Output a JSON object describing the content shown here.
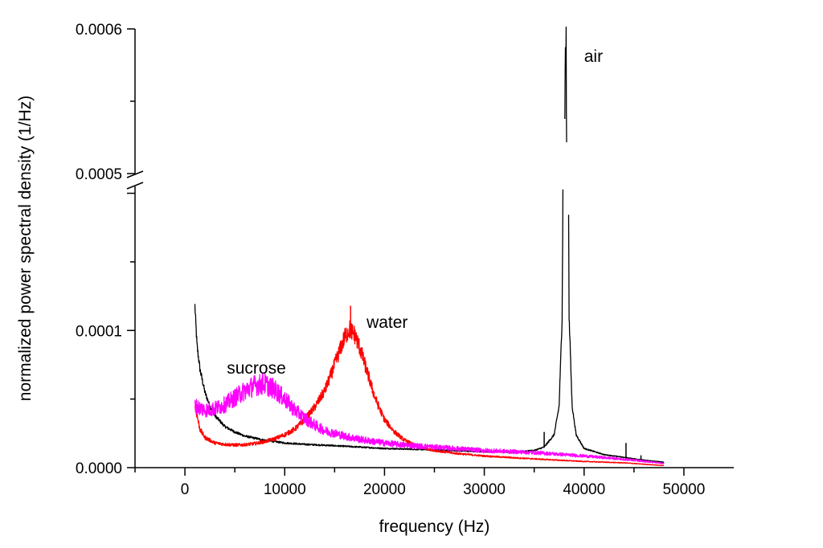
{
  "chart_data": {
    "type": "line",
    "title": "",
    "xlabel": "frequency (Hz)",
    "ylabel": "normalized power spectral density (1/Hz)",
    "xlim": [
      -5000,
      55000
    ],
    "ylim_lower": [
      0.0,
      0.000205
    ],
    "ylim_upper": [
      0.0005,
      0.0006
    ],
    "axis_break": "between 0.000205 and 0.0005 on the y axis",
    "x_ticks": [
      0,
      10000,
      20000,
      30000,
      40000,
      50000
    ],
    "x_tick_labels": [
      "0",
      "10000",
      "20000",
      "30000",
      "40000",
      "50000"
    ],
    "y_tick_labels": [
      "0.0000",
      "0.0001",
      "0.0005",
      "0.0006"
    ],
    "grid": false,
    "legend": "none (series labelled by annotations)",
    "annotations": [
      {
        "text": "air",
        "x": 40000,
        "y": 0.000581
      },
      {
        "text": "water",
        "x": 18200,
        "y": 0.000106
      },
      {
        "text": "sucrose",
        "x": 4200,
        "y": 7.27e-05
      }
    ],
    "series": [
      {
        "name": "air",
        "color": "#000000",
        "description": "high 1/f rise at low frequency, flat background, sharp resonance near 38200 Hz",
        "x": [
          1000,
          1200,
          1500,
          2000,
          2500,
          3000,
          4000,
          5000,
          6000,
          8000,
          10000,
          12000,
          15000,
          20000,
          25000,
          30000,
          33000,
          35000,
          36000,
          37000,
          37500,
          37800,
          38000,
          38100,
          38200,
          38300,
          38500,
          38800,
          39200,
          40000,
          42000,
          44000,
          46000,
          48000
        ],
        "values": [
          0.000118,
          9e-05,
          7.2e-05,
          5.5e-05,
          4.5e-05,
          3.8e-05,
          3e-05,
          2.6e-05,
          2.3e-05,
          2e-05,
          1.8e-05,
          1.7e-05,
          1.6e-05,
          1.4e-05,
          1.3e-05,
          1.15e-05,
          1.15e-05,
          1.25e-05,
          1.5e-05,
          2.4e-05,
          4.5e-05,
          0.00011,
          0.00035,
          0.00058,
          0.000589,
          0.00042,
          0.00011,
          4.5e-05,
          2.4e-05,
          1.4e-05,
          9.5e-06,
          7.5e-06,
          5.5e-06,
          4e-06
        ],
        "spikes": [
          {
            "x": 36000,
            "y": 2.6e-05
          },
          {
            "x": 44200,
            "y": 1.8e-05
          },
          {
            "x": 45700,
            "y": 9e-06
          }
        ]
      },
      {
        "name": "water",
        "color": "#ff0000",
        "description": "resonance peak near 16600 Hz",
        "x": [
          1000,
          1500,
          2000,
          3000,
          4000,
          5000,
          6000,
          7000,
          8000,
          9000,
          10000,
          11000,
          12000,
          13000,
          14000,
          14500,
          15000,
          15500,
          16000,
          16500,
          17000,
          17500,
          18000,
          18500,
          19000,
          19500,
          20000,
          21000,
          22000,
          23000,
          24000,
          25000,
          27000,
          30000,
          33000,
          36000,
          40000,
          44000,
          48000
        ],
        "values": [
          4.6e-05,
          2.8e-05,
          2.2e-05,
          1.8e-05,
          1.7e-05,
          1.65e-05,
          1.67e-05,
          1.75e-05,
          1.9e-05,
          2.1e-05,
          2.4e-05,
          2.8e-05,
          3.5e-05,
          4.4e-05,
          5.6e-05,
          6.5e-05,
          7.5e-05,
          8.5e-05,
          9.5e-05,
          0.000101,
          9.7e-05,
          8.8e-05,
          7.6e-05,
          6.4e-05,
          5.2e-05,
          4.3e-05,
          3.5e-05,
          2.6e-05,
          2e-05,
          1.65e-05,
          1.4e-05,
          1.25e-05,
          1.05e-05,
          8.5e-06,
          7.2e-06,
          6e-06,
          4.5e-06,
          3.5e-06,
          1.5e-06
        ],
        "spikes": [
          {
            "x": 16600,
            "y": 0.000118
          }
        ]
      },
      {
        "name": "sucrose",
        "color": "#ff00ff",
        "description": "broad noisy peak near 8000 Hz",
        "x": [
          1000,
          2000,
          3000,
          4000,
          5000,
          6000,
          7000,
          8000,
          9000,
          10000,
          11000,
          12000,
          13000,
          14000,
          15000,
          16000,
          18000,
          20000,
          22000,
          25000,
          30000,
          35000,
          40000,
          45000,
          48000
        ],
        "values": [
          4.5e-05,
          4.2e-05,
          4.3e-05,
          4.6e-05,
          5.1e-05,
          5.6e-05,
          6e-05,
          6.1e-05,
          5.7e-05,
          5e-05,
          4.2e-05,
          3.6e-05,
          3.1e-05,
          2.7e-05,
          2.5e-05,
          2.3e-05,
          2e-05,
          1.8e-05,
          1.65e-05,
          1.5e-05,
          1.25e-05,
          1.1e-05,
          8.5e-06,
          5.5e-06,
          3e-06
        ],
        "spikes": [
          {
            "x": 7800,
            "y": 6.9e-05
          }
        ]
      }
    ]
  }
}
